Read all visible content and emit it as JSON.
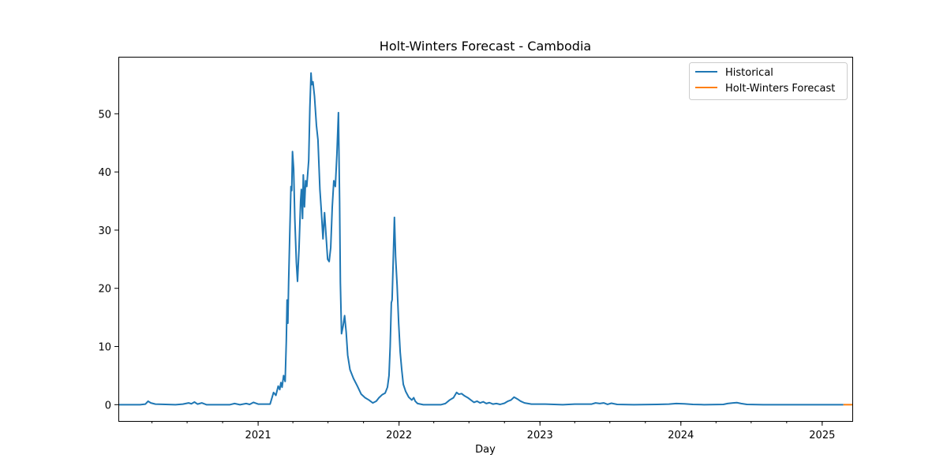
{
  "chart_data": {
    "type": "line",
    "title": "Holt-Winters Forecast - Cambodia",
    "xlabel": "Day",
    "ylabel": "",
    "x_range": [
      "2020-01-05",
      "2025-03-20"
    ],
    "ylim": [
      -2.8,
      59.8
    ],
    "grid": false,
    "legend_position": "top-right",
    "y_ticks": [
      0,
      10,
      20,
      30,
      40,
      50
    ],
    "x_ticks": [
      {
        "date": "2021-01-01",
        "label": "2021"
      },
      {
        "date": "2022-01-01",
        "label": "2022"
      },
      {
        "date": "2023-01-01",
        "label": "2023"
      },
      {
        "date": "2024-01-01",
        "label": "2024"
      },
      {
        "date": "2025-01-01",
        "label": "2025"
      }
    ],
    "series": [
      {
        "name": "Historical",
        "color": "#1f77b4",
        "points": [
          [
            "2020-01-05",
            0
          ],
          [
            "2020-03-01",
            0
          ],
          [
            "2020-03-15",
            0.1
          ],
          [
            "2020-03-22",
            0.6
          ],
          [
            "2020-03-29",
            0.3
          ],
          [
            "2020-04-10",
            0.1
          ],
          [
            "2020-06-01",
            0
          ],
          [
            "2020-06-20",
            0.1
          ],
          [
            "2020-07-05",
            0.3
          ],
          [
            "2020-07-12",
            0.15
          ],
          [
            "2020-07-20",
            0.45
          ],
          [
            "2020-07-28",
            0.1
          ],
          [
            "2020-08-08",
            0.3
          ],
          [
            "2020-08-20",
            0
          ],
          [
            "2020-10-20",
            0
          ],
          [
            "2020-11-01",
            0.2
          ],
          [
            "2020-11-15",
            0
          ],
          [
            "2020-12-01",
            0.2
          ],
          [
            "2020-12-10",
            0.05
          ],
          [
            "2020-12-20",
            0.4
          ],
          [
            "2021-01-01",
            0.1
          ],
          [
            "2021-01-20",
            0.1
          ],
          [
            "2021-02-01",
            0.1
          ],
          [
            "2021-02-10",
            2.1
          ],
          [
            "2021-02-16",
            1.6
          ],
          [
            "2021-02-22",
            3.2
          ],
          [
            "2021-02-26",
            2.6
          ],
          [
            "2021-03-01",
            3.8
          ],
          [
            "2021-03-04",
            3.0
          ],
          [
            "2021-03-08",
            5.0
          ],
          [
            "2021-03-12",
            4.0
          ],
          [
            "2021-03-15",
            11.0
          ],
          [
            "2021-03-17",
            18.0
          ],
          [
            "2021-03-19",
            14.0
          ],
          [
            "2021-03-21",
            21.0
          ],
          [
            "2021-03-24",
            29.5
          ],
          [
            "2021-03-27",
            37.5
          ],
          [
            "2021-03-29",
            36.8
          ],
          [
            "2021-03-31",
            43.5
          ],
          [
            "2021-04-03",
            40.5
          ],
          [
            "2021-04-06",
            32.0
          ],
          [
            "2021-04-10",
            24.5
          ],
          [
            "2021-04-13",
            21.2
          ],
          [
            "2021-04-17",
            27.0
          ],
          [
            "2021-04-21",
            35.0
          ],
          [
            "2021-04-23",
            37.0
          ],
          [
            "2021-04-26",
            32.0
          ],
          [
            "2021-04-28",
            39.5
          ],
          [
            "2021-05-01",
            34.0
          ],
          [
            "2021-05-04",
            38.5
          ],
          [
            "2021-05-07",
            37.5
          ],
          [
            "2021-05-12",
            42.0
          ],
          [
            "2021-05-15",
            51.0
          ],
          [
            "2021-05-18",
            57.0
          ],
          [
            "2021-05-20",
            55.0
          ],
          [
            "2021-05-23",
            55.5
          ],
          [
            "2021-05-27",
            53.0
          ],
          [
            "2021-06-01",
            48.0
          ],
          [
            "2021-06-05",
            45.5
          ],
          [
            "2021-06-10",
            37.0
          ],
          [
            "2021-06-14",
            33.0
          ],
          [
            "2021-06-18",
            28.5
          ],
          [
            "2021-06-22",
            33.0
          ],
          [
            "2021-06-26",
            29.0
          ],
          [
            "2021-06-30",
            25.0
          ],
          [
            "2021-07-04",
            24.6
          ],
          [
            "2021-07-08",
            27.0
          ],
          [
            "2021-07-12",
            34.0
          ],
          [
            "2021-07-16",
            38.5
          ],
          [
            "2021-07-20",
            37.5
          ],
          [
            "2021-07-24",
            43.0
          ],
          [
            "2021-07-28",
            50.2
          ],
          [
            "2021-07-31",
            35.0
          ],
          [
            "2021-08-02",
            21.0
          ],
          [
            "2021-08-05",
            12.2
          ],
          [
            "2021-08-09",
            13.5
          ],
          [
            "2021-08-13",
            15.3
          ],
          [
            "2021-08-17",
            12.5
          ],
          [
            "2021-08-21",
            8.5
          ],
          [
            "2021-08-27",
            6.0
          ],
          [
            "2021-09-05",
            4.5
          ],
          [
            "2021-09-15",
            3.2
          ],
          [
            "2021-09-25",
            1.8
          ],
          [
            "2021-10-05",
            1.2
          ],
          [
            "2021-10-15",
            0.8
          ],
          [
            "2021-10-25",
            0.3
          ],
          [
            "2021-11-03",
            0.6
          ],
          [
            "2021-11-10",
            1.2
          ],
          [
            "2021-11-18",
            1.7
          ],
          [
            "2021-11-26",
            2.0
          ],
          [
            "2021-12-02",
            3.0
          ],
          [
            "2021-12-06",
            5.0
          ],
          [
            "2021-12-09",
            10.0
          ],
          [
            "2021-12-12",
            17.5
          ],
          [
            "2021-12-14",
            18.0
          ],
          [
            "2021-12-17",
            25.0
          ],
          [
            "2021-12-20",
            32.2
          ],
          [
            "2021-12-23",
            25.5
          ],
          [
            "2021-12-27",
            20.5
          ],
          [
            "2021-12-31",
            14.0
          ],
          [
            "2022-01-04",
            9.0
          ],
          [
            "2022-01-08",
            6.0
          ],
          [
            "2022-01-12",
            3.5
          ],
          [
            "2022-01-18",
            2.3
          ],
          [
            "2022-01-26",
            1.3
          ],
          [
            "2022-02-03",
            0.8
          ],
          [
            "2022-02-08",
            1.2
          ],
          [
            "2022-02-12",
            0.6
          ],
          [
            "2022-02-18",
            0.2
          ],
          [
            "2022-03-05",
            0
          ],
          [
            "2022-04-20",
            0
          ],
          [
            "2022-05-01",
            0.2
          ],
          [
            "2022-05-12",
            0.8
          ],
          [
            "2022-05-22",
            1.2
          ],
          [
            "2022-05-30",
            2.1
          ],
          [
            "2022-06-05",
            1.8
          ],
          [
            "2022-06-12",
            1.9
          ],
          [
            "2022-06-20",
            1.5
          ],
          [
            "2022-06-28",
            1.2
          ],
          [
            "2022-07-06",
            0.8
          ],
          [
            "2022-07-14",
            0.4
          ],
          [
            "2022-07-22",
            0.6
          ],
          [
            "2022-07-30",
            0.3
          ],
          [
            "2022-08-07",
            0.5
          ],
          [
            "2022-08-15",
            0.2
          ],
          [
            "2022-08-23",
            0.35
          ],
          [
            "2022-09-01",
            0.1
          ],
          [
            "2022-09-10",
            0.2
          ],
          [
            "2022-09-20",
            0.05
          ],
          [
            "2022-10-01",
            0.25
          ],
          [
            "2022-10-10",
            0.6
          ],
          [
            "2022-10-18",
            0.8
          ],
          [
            "2022-10-26",
            1.3
          ],
          [
            "2022-11-03",
            1.0
          ],
          [
            "2022-11-12",
            0.6
          ],
          [
            "2022-11-22",
            0.3
          ],
          [
            "2022-12-10",
            0.1
          ],
          [
            "2023-01-15",
            0.1
          ],
          [
            "2023-03-01",
            0
          ],
          [
            "2023-04-01",
            0.1
          ],
          [
            "2023-05-15",
            0.1
          ],
          [
            "2023-05-25",
            0.3
          ],
          [
            "2023-06-05",
            0.2
          ],
          [
            "2023-06-15",
            0.3
          ],
          [
            "2023-06-25",
            0.05
          ],
          [
            "2023-07-05",
            0.25
          ],
          [
            "2023-07-20",
            0.05
          ],
          [
            "2023-09-01",
            0
          ],
          [
            "2023-11-01",
            0.05
          ],
          [
            "2023-12-01",
            0.1
          ],
          [
            "2023-12-20",
            0.2
          ],
          [
            "2024-01-10",
            0.15
          ],
          [
            "2024-02-01",
            0.05
          ],
          [
            "2024-03-01",
            0
          ],
          [
            "2024-04-20",
            0.05
          ],
          [
            "2024-05-01",
            0.2
          ],
          [
            "2024-05-15",
            0.3
          ],
          [
            "2024-05-25",
            0.35
          ],
          [
            "2024-06-05",
            0.2
          ],
          [
            "2024-06-20",
            0.05
          ],
          [
            "2024-08-01",
            0
          ],
          [
            "2025-02-25",
            0
          ]
        ]
      },
      {
        "name": "Holt-Winters Forecast",
        "color": "#ff7f0e",
        "points": [
          [
            "2025-02-25",
            0
          ],
          [
            "2025-03-20",
            0
          ]
        ]
      }
    ]
  }
}
